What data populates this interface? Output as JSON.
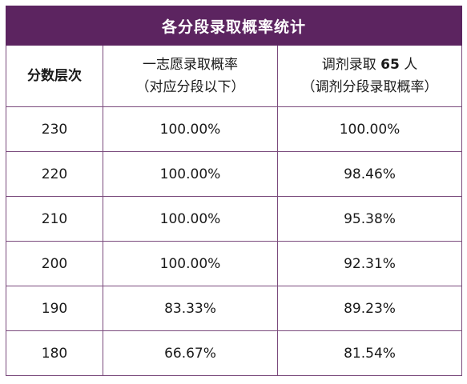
{
  "table": {
    "title": "各分段录取概率统计",
    "headers": {
      "col1": "分数层次",
      "col2_line1": "一志愿录取概率",
      "col2_line2": "（对应分段以下）",
      "col3_prefix": "调剂录取",
      "col3_count": "65",
      "col3_suffix": "人",
      "col3_line2": "（调剂分段录取概率）"
    },
    "rows": [
      {
        "score": "230",
        "first_choice": "100.00%",
        "adjusted": "100.00%"
      },
      {
        "score": "220",
        "first_choice": "100.00%",
        "adjusted": "98.46%"
      },
      {
        "score": "210",
        "first_choice": "100.00%",
        "adjusted": "95.38%"
      },
      {
        "score": "200",
        "first_choice": "100.00%",
        "adjusted": "92.31%"
      },
      {
        "score": "190",
        "first_choice": "83.33%",
        "adjusted": "89.23%"
      },
      {
        "score": "180",
        "first_choice": "66.67%",
        "adjusted": "81.54%"
      }
    ]
  }
}
